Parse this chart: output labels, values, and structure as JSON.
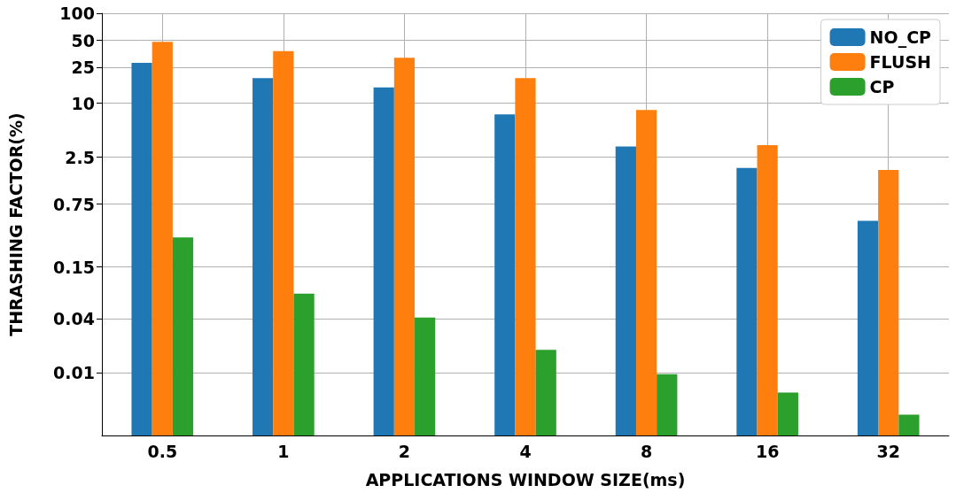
{
  "chart_data": {
    "type": "bar",
    "xlabel": "APPLICATIONS WINDOW SIZE(ms)",
    "ylabel": "THRASHING FACTOR(%)",
    "categories": [
      "0.5",
      "1",
      "2",
      "4",
      "8",
      "16",
      "32"
    ],
    "series": [
      {
        "name": "NO_CP",
        "color": "#1f77b4",
        "values": [
          28,
          19,
          15,
          7.5,
          3.3,
          1.9,
          0.49
        ]
      },
      {
        "name": "FLUSH",
        "color": "#ff7f0e",
        "values": [
          48,
          38,
          32,
          19,
          8.4,
          3.4,
          1.8
        ]
      },
      {
        "name": "CP",
        "color": "#2ca02c",
        "values": [
          0.32,
          0.076,
          0.041,
          0.018,
          0.0096,
          0.006,
          0.0034
        ]
      }
    ],
    "log": "y",
    "ylim": [
      0.002,
      100
    ],
    "yticks": [
      0.01,
      0.04,
      0.15,
      0.75,
      2.5,
      10,
      25,
      50,
      100
    ],
    "grid": true,
    "legend": "top right"
  }
}
